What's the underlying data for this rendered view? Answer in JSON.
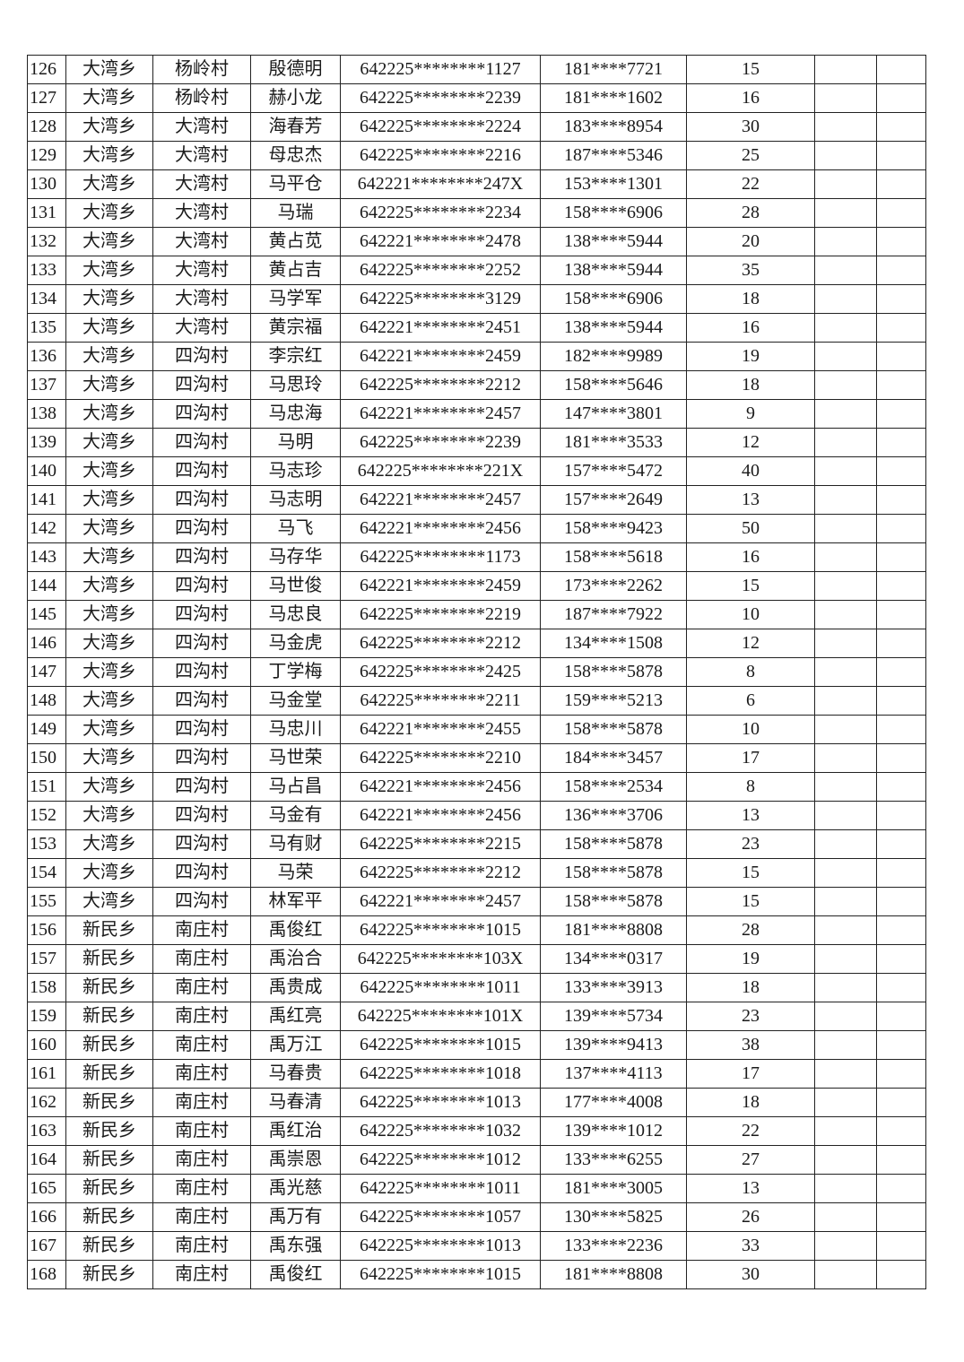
{
  "rows": [
    [
      "126",
      "大湾乡",
      "杨岭村",
      "殷德明",
      "642225********1127",
      "181****7721",
      "15",
      "",
      ""
    ],
    [
      "127",
      "大湾乡",
      "杨岭村",
      "赫小龙",
      "642225********2239",
      "181****1602",
      "16",
      "",
      ""
    ],
    [
      "128",
      "大湾乡",
      "大湾村",
      "海春芳",
      "642225********2224",
      "183****8954",
      "30",
      "",
      ""
    ],
    [
      "129",
      "大湾乡",
      "大湾村",
      "母忠杰",
      "642225********2216",
      "187****5346",
      "25",
      "",
      ""
    ],
    [
      "130",
      "大湾乡",
      "大湾村",
      "马平仓",
      "642221********247X",
      "153****1301",
      "22",
      "",
      ""
    ],
    [
      "131",
      "大湾乡",
      "大湾村",
      "马瑞",
      "642225********2234",
      "158****6906",
      "28",
      "",
      ""
    ],
    [
      "132",
      "大湾乡",
      "大湾村",
      "黄占苋",
      "642221********2478",
      "138****5944",
      "20",
      "",
      ""
    ],
    [
      "133",
      "大湾乡",
      "大湾村",
      "黄占吉",
      "642225********2252",
      "138****5944",
      "35",
      "",
      ""
    ],
    [
      "134",
      "大湾乡",
      "大湾村",
      "马学军",
      "642225********3129",
      "158****6906",
      "18",
      "",
      ""
    ],
    [
      "135",
      "大湾乡",
      "大湾村",
      "黄宗福",
      "642221********2451",
      "138****5944",
      "16",
      "",
      ""
    ],
    [
      "136",
      "大湾乡",
      "四沟村",
      "李宗红",
      "642221********2459",
      "182****9989",
      "19",
      "",
      ""
    ],
    [
      "137",
      "大湾乡",
      "四沟村",
      "马思玲",
      "642225********2212",
      "158****5646",
      "18",
      "",
      ""
    ],
    [
      "138",
      "大湾乡",
      "四沟村",
      "马忠海",
      "642221********2457",
      "147****3801",
      "9",
      "",
      ""
    ],
    [
      "139",
      "大湾乡",
      "四沟村",
      "马明",
      "642225********2239",
      "181****3533",
      "12",
      "",
      ""
    ],
    [
      "140",
      "大湾乡",
      "四沟村",
      "马志珍",
      "642225********221X",
      "157****5472",
      "40",
      "",
      ""
    ],
    [
      "141",
      "大湾乡",
      "四沟村",
      "马志明",
      "642221********2457",
      "157****2649",
      "13",
      "",
      ""
    ],
    [
      "142",
      "大湾乡",
      "四沟村",
      "马飞",
      "642221********2456",
      "158****9423",
      "50",
      "",
      ""
    ],
    [
      "143",
      "大湾乡",
      "四沟村",
      "马存华",
      "642225********1173",
      "158****5618",
      "16",
      "",
      ""
    ],
    [
      "144",
      "大湾乡",
      "四沟村",
      "马世俊",
      "642221********2459",
      "173****2262",
      "15",
      "",
      ""
    ],
    [
      "145",
      "大湾乡",
      "四沟村",
      "马忠良",
      "642225********2219",
      "187****7922",
      "10",
      "",
      ""
    ],
    [
      "146",
      "大湾乡",
      "四沟村",
      "马金虎",
      "642225********2212",
      "134****1508",
      "12",
      "",
      ""
    ],
    [
      "147",
      "大湾乡",
      "四沟村",
      "丁学梅",
      "642225********2425",
      "158****5878",
      "8",
      "",
      ""
    ],
    [
      "148",
      "大湾乡",
      "四沟村",
      "马金堂",
      "642225********2211",
      "159****5213",
      "6",
      "",
      ""
    ],
    [
      "149",
      "大湾乡",
      "四沟村",
      "马忠川",
      "642221********2455",
      "158****5878",
      "10",
      "",
      ""
    ],
    [
      "150",
      "大湾乡",
      "四沟村",
      "马世荣",
      "642225********2210",
      "184****3457",
      "17",
      "",
      ""
    ],
    [
      "151",
      "大湾乡",
      "四沟村",
      "马占昌",
      "642221********2456",
      "158****2534",
      "8",
      "",
      ""
    ],
    [
      "152",
      "大湾乡",
      "四沟村",
      "马金有",
      "642221********2456",
      "136****3706",
      "13",
      "",
      ""
    ],
    [
      "153",
      "大湾乡",
      "四沟村",
      "马有财",
      "642225********2215",
      "158****5878",
      "23",
      "",
      ""
    ],
    [
      "154",
      "大湾乡",
      "四沟村",
      "马荣",
      "642225********2212",
      "158****5878",
      "15",
      "",
      ""
    ],
    [
      "155",
      "大湾乡",
      "四沟村",
      "林军平",
      "642221********2457",
      "158****5878",
      "15",
      "",
      ""
    ],
    [
      "156",
      "新民乡",
      "南庄村",
      "禹俊红",
      "642225********1015",
      "181****8808",
      "28",
      "",
      ""
    ],
    [
      "157",
      "新民乡",
      "南庄村",
      "禹治合",
      "642225********103X",
      "134****0317",
      "19",
      "",
      ""
    ],
    [
      "158",
      "新民乡",
      "南庄村",
      "禹贵成",
      "642225********1011",
      "133****3913",
      "18",
      "",
      ""
    ],
    [
      "159",
      "新民乡",
      "南庄村",
      "禹红亮",
      "642225********101X",
      "139****5734",
      "23",
      "",
      ""
    ],
    [
      "160",
      "新民乡",
      "南庄村",
      "禹万江",
      "642225********1015",
      "139****9413",
      "38",
      "",
      ""
    ],
    [
      "161",
      "新民乡",
      "南庄村",
      "马春贵",
      "642225********1018",
      "137****4113",
      "17",
      "",
      ""
    ],
    [
      "162",
      "新民乡",
      "南庄村",
      "马春清",
      "642225********1013",
      "177****4008",
      "18",
      "",
      ""
    ],
    [
      "163",
      "新民乡",
      "南庄村",
      "禹红治",
      "642225********1032",
      "139****1012",
      "22",
      "",
      ""
    ],
    [
      "164",
      "新民乡",
      "南庄村",
      "禹崇恩",
      "642225********1012",
      "133****6255",
      "27",
      "",
      ""
    ],
    [
      "165",
      "新民乡",
      "南庄村",
      "禹光慈",
      "642225********1011",
      "181****3005",
      "13",
      "",
      ""
    ],
    [
      "166",
      "新民乡",
      "南庄村",
      "禹万有",
      "642225********1057",
      "130****5825",
      "26",
      "",
      ""
    ],
    [
      "167",
      "新民乡",
      "南庄村",
      "禹东强",
      "642225********1013",
      "133****2236",
      "33",
      "",
      ""
    ],
    [
      "168",
      "新民乡",
      "南庄村",
      "禹俊红",
      "642225********1015",
      "181****8808",
      "30",
      "",
      ""
    ]
  ]
}
